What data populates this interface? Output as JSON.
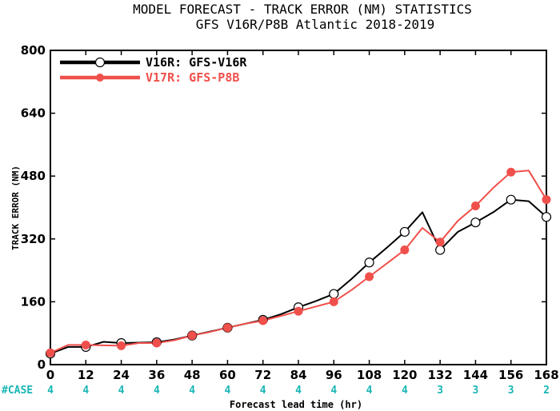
{
  "chart_data": {
    "type": "line",
    "title": "MODEL FORECAST - TRACK ERROR (NM) STATISTICS",
    "subtitle": "GFS V16R/P8B Atlantic 2018-2019",
    "xlabel": "Forecast lead time (hr)",
    "ylabel": "TRACK ERROR (NM)",
    "xlim": [
      0,
      168
    ],
    "ylim": [
      0,
      800
    ],
    "xticks": [
      "0",
      "12",
      "24",
      "36",
      "48",
      "60",
      "72",
      "84",
      "96",
      "108",
      "120",
      "132",
      "144",
      "156",
      "168"
    ],
    "yticks": [
      "0",
      "160",
      "320",
      "480",
      "640",
      "800"
    ],
    "case_label": "#CASE",
    "case_counts": [
      "4",
      "4",
      "4",
      "4",
      "4",
      "4",
      "4",
      "4",
      "4",
      "4",
      "4",
      "3",
      "3",
      "3",
      "2"
    ],
    "legend_position": "top-left",
    "series": [
      {
        "name": "V16R: GFS-V16R",
        "color": "#000000",
        "marker": "open-circle",
        "x": [
          0,
          6,
          12,
          18,
          24,
          30,
          36,
          42,
          48,
          54,
          60,
          66,
          72,
          78,
          84,
          90,
          96,
          102,
          108,
          114,
          120,
          126,
          132,
          138,
          144,
          150,
          156,
          162,
          168
        ],
        "y": [
          28,
          45,
          45,
          58,
          55,
          56,
          57,
          64,
          74,
          84,
          94,
          104,
          114,
          128,
          146,
          162,
          180,
          218,
          260,
          298,
          338,
          388,
          292,
          338,
          362,
          388,
          420,
          416,
          376
        ],
        "marked_x": [
          0,
          12,
          24,
          36,
          48,
          60,
          72,
          84,
          96,
          108,
          120,
          132,
          144,
          156,
          168
        ]
      },
      {
        "name": "V17R: GFS-P8B",
        "color": "#f0504c",
        "marker": "filled-circle",
        "x": [
          0,
          6,
          12,
          18,
          24,
          30,
          36,
          42,
          48,
          54,
          60,
          66,
          72,
          78,
          84,
          90,
          96,
          102,
          108,
          114,
          120,
          126,
          132,
          138,
          144,
          150,
          156,
          162,
          168
        ],
        "y": [
          30,
          50,
          50,
          49,
          48,
          55,
          55,
          62,
          74,
          83,
          94,
          104,
          112,
          124,
          136,
          148,
          160,
          190,
          224,
          258,
          292,
          348,
          312,
          366,
          404,
          450,
          490,
          494,
          420
        ],
        "marked_x": [
          0,
          12,
          24,
          36,
          48,
          60,
          72,
          84,
          96,
          108,
          120,
          132,
          144,
          156,
          168
        ]
      }
    ]
  }
}
